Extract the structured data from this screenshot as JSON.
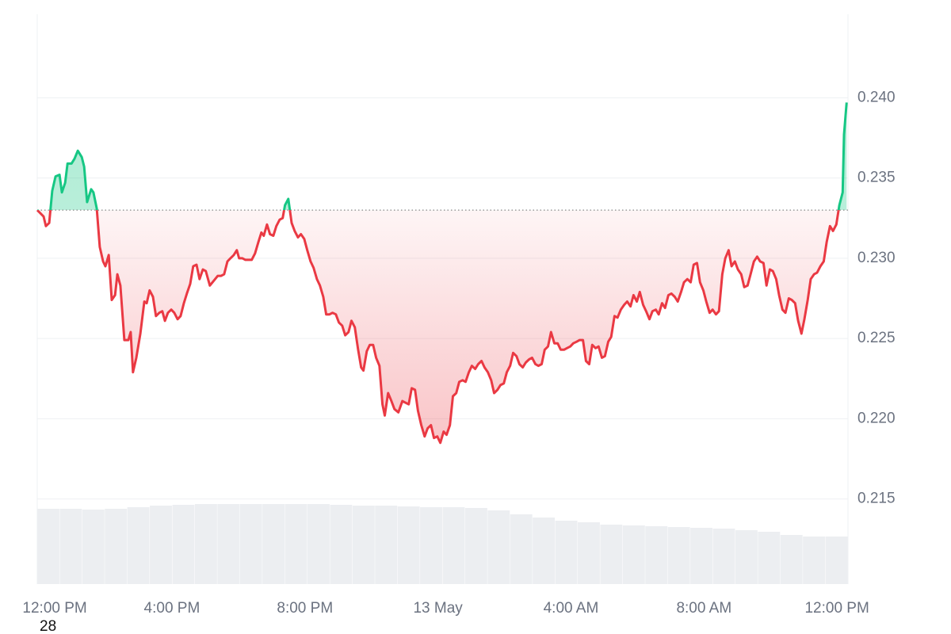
{
  "chart_data": {
    "type": "line",
    "annotation": "28",
    "x": [
      -0.05,
      0.14,
      0.21,
      0.31,
      0.4,
      0.5,
      0.62,
      0.69,
      0.79,
      0.86,
      0.98,
      1.07,
      1.17,
      1.29,
      1.36,
      1.45,
      1.57,
      1.64,
      1.74,
      1.83,
      1.93,
      2.0,
      2.1,
      2.19,
      2.29,
      2.36,
      2.45,
      2.57,
      2.69,
      2.76,
      2.83,
      2.93,
      3.05,
      3.17,
      3.24,
      3.33,
      3.43,
      3.52,
      3.62,
      3.71,
      3.79,
      3.88,
      3.98,
      4.07,
      4.17,
      4.26,
      4.36,
      4.45,
      4.55,
      4.64,
      4.74,
      4.83,
      4.93,
      5.02,
      5.14,
      5.26,
      5.38,
      5.48,
      5.57,
      5.67,
      5.76,
      5.86,
      5.95,
      6.02,
      6.12,
      6.21,
      6.31,
      6.4,
      6.5,
      6.6,
      6.69,
      6.76,
      6.86,
      6.95,
      7.05,
      7.14,
      7.24,
      7.33,
      7.4,
      7.5,
      7.6,
      7.69,
      7.79,
      7.88,
      7.98,
      8.07,
      8.17,
      8.26,
      8.36,
      8.45,
      8.55,
      8.64,
      8.74,
      8.83,
      8.93,
      9.02,
      9.12,
      9.21,
      9.31,
      9.4,
      9.5,
      9.6,
      9.69,
      9.76,
      9.86,
      9.95,
      10.05,
      10.14,
      10.24,
      10.33,
      10.4,
      10.5,
      10.6,
      10.69,
      10.81,
      10.93,
      11.02,
      11.12,
      11.21,
      11.31,
      11.4,
      11.5,
      11.6,
      11.69,
      11.79,
      11.88,
      11.98,
      12.07,
      12.17,
      12.26,
      12.36,
      12.45,
      12.55,
      12.64,
      12.74,
      12.83,
      12.93,
      13.02,
      13.12,
      13.21,
      13.31,
      13.4,
      13.5,
      13.6,
      13.69,
      13.79,
      13.88,
      13.98,
      14.07,
      14.17,
      14.26,
      14.36,
      14.45,
      14.55,
      14.64,
      14.74,
      14.83,
      14.93,
      15.02,
      15.12,
      15.21,
      15.31,
      15.4,
      15.5,
      15.6,
      15.69,
      15.79,
      15.88,
      15.98,
      16.07,
      16.17,
      16.26,
      16.36,
      16.45,
      16.55,
      16.64,
      16.74,
      16.83,
      16.93,
      17.02,
      17.12,
      17.21,
      17.31,
      17.4,
      17.5,
      17.6,
      17.69,
      17.79,
      17.88,
      17.98,
      18.07,
      18.17,
      18.26,
      18.36,
      18.45,
      18.55,
      18.64,
      18.74,
      18.83,
      18.93,
      19.02,
      19.12,
      19.21,
      19.31,
      19.4,
      19.5,
      19.6,
      19.69,
      19.79,
      19.88,
      19.98,
      20.07,
      20.17,
      20.26,
      20.36,
      20.45,
      20.55,
      20.64,
      20.74,
      20.83,
      20.93,
      21.02,
      21.12,
      21.21,
      21.31,
      21.4,
      21.5,
      21.6,
      21.69,
      21.79,
      21.88,
      21.98,
      22.07,
      22.17,
      22.26,
      22.36,
      22.45,
      22.55,
      22.64,
      22.74,
      22.83,
      22.93,
      23.02,
      23.12,
      23.21,
      23.31,
      23.4,
      23.5,
      23.6,
      23.69,
      23.79,
      23.88,
      23.98,
      24.07,
      24.17,
      24.21,
      24.29
    ],
    "series": [
      {
        "values": [
          0.233,
          0.2326,
          0.232,
          0.2322,
          0.2342,
          0.2351,
          0.2352,
          0.2341,
          0.2347,
          0.2359,
          0.2359,
          0.2362,
          0.2367,
          0.2363,
          0.2357,
          0.2335,
          0.2343,
          0.2341,
          0.2331,
          0.2307,
          0.2298,
          0.2295,
          0.2302,
          0.2274,
          0.2277,
          0.229,
          0.2283,
          0.2249,
          0.2249,
          0.2254,
          0.2229,
          0.2238,
          0.2253,
          0.2273,
          0.2272,
          0.228,
          0.2276,
          0.2264,
          0.2266,
          0.2267,
          0.2261,
          0.2266,
          0.2268,
          0.2266,
          0.2262,
          0.2264,
          0.2272,
          0.2278,
          0.2284,
          0.2295,
          0.2296,
          0.2287,
          0.2293,
          0.2292,
          0.2283,
          0.2286,
          0.2289,
          0.2289,
          0.229,
          0.2298,
          0.23,
          0.2302,
          0.2305,
          0.23,
          0.23,
          0.2299,
          0.2299,
          0.2299,
          0.2303,
          0.231,
          0.2316,
          0.2314,
          0.2321,
          0.2315,
          0.2314,
          0.232,
          0.2324,
          0.2325,
          0.2333,
          0.2337,
          0.2322,
          0.2317,
          0.2313,
          0.2315,
          0.2312,
          0.2305,
          0.2298,
          0.2294,
          0.2287,
          0.2283,
          0.2276,
          0.2265,
          0.2265,
          0.2266,
          0.2265,
          0.226,
          0.2258,
          0.2252,
          0.2254,
          0.2261,
          0.2257,
          0.2243,
          0.2232,
          0.223,
          0.2242,
          0.2246,
          0.2246,
          0.2238,
          0.2233,
          0.2209,
          0.2202,
          0.2216,
          0.2211,
          0.2206,
          0.2204,
          0.2211,
          0.221,
          0.2209,
          0.2219,
          0.2218,
          0.2205,
          0.2196,
          0.2189,
          0.2194,
          0.2196,
          0.2188,
          0.2189,
          0.2185,
          0.2192,
          0.219,
          0.2196,
          0.2214,
          0.2216,
          0.2223,
          0.2224,
          0.2223,
          0.2229,
          0.2233,
          0.2231,
          0.2234,
          0.2236,
          0.2232,
          0.2229,
          0.2224,
          0.2216,
          0.2218,
          0.2221,
          0.2222,
          0.2229,
          0.2233,
          0.2241,
          0.2239,
          0.2234,
          0.2232,
          0.2235,
          0.2237,
          0.2238,
          0.2234,
          0.2233,
          0.2234,
          0.2243,
          0.2245,
          0.2254,
          0.2247,
          0.2247,
          0.2243,
          0.2243,
          0.2244,
          0.2245,
          0.2247,
          0.2248,
          0.2249,
          0.2249,
          0.2236,
          0.2234,
          0.2246,
          0.2244,
          0.2245,
          0.2238,
          0.2239,
          0.2248,
          0.2251,
          0.2264,
          0.2263,
          0.2268,
          0.2271,
          0.2273,
          0.227,
          0.2277,
          0.2273,
          0.2279,
          0.2271,
          0.2267,
          0.2262,
          0.2267,
          0.2268,
          0.2265,
          0.2272,
          0.2269,
          0.2277,
          0.2278,
          0.2276,
          0.2273,
          0.2279,
          0.2285,
          0.2287,
          0.2285,
          0.2296,
          0.2297,
          0.2285,
          0.228,
          0.2273,
          0.2266,
          0.2268,
          0.2265,
          0.2267,
          0.229,
          0.23,
          0.2305,
          0.2295,
          0.2298,
          0.2293,
          0.229,
          0.2282,
          0.2283,
          0.229,
          0.2298,
          0.2301,
          0.2298,
          0.2297,
          0.2283,
          0.2293,
          0.2292,
          0.2287,
          0.2277,
          0.2268,
          0.2266,
          0.2275,
          0.2274,
          0.2272,
          0.2261,
          0.2253,
          0.2262,
          0.2274,
          0.2287,
          0.229,
          0.2291,
          0.2295,
          0.2298,
          0.231,
          0.232,
          0.2317,
          0.2321,
          0.2333,
          0.2341,
          0.2377,
          0.2397
        ]
      }
    ],
    "baseline": 0.233,
    "colors": {
      "up": "#16c784",
      "down": "#ea3943"
    },
    "volume": {
      "values": [
        95,
        95,
        94,
        95,
        97,
        99,
        100,
        101,
        101,
        101,
        101,
        101,
        101,
        100,
        99,
        99,
        98,
        97,
        97,
        96,
        93,
        88,
        84,
        80,
        78,
        75,
        74,
        73,
        72,
        71,
        70,
        68,
        66,
        62,
        60,
        60
      ],
      "color": "#eceef1"
    },
    "xlim": [
      -0.05,
      24.33
    ],
    "ylim": [
      0.2097,
      0.2452
    ],
    "xticks": [
      {
        "value": 0,
        "label": "12:00 PM"
      },
      {
        "value": 4,
        "label": "4:00 PM"
      },
      {
        "value": 8,
        "label": "8:00 PM"
      },
      {
        "value": 12,
        "label": "13 May"
      },
      {
        "value": 16,
        "label": "4:00 AM"
      },
      {
        "value": 20,
        "label": "8:00 AM"
      },
      {
        "value": 24,
        "label": "12:00 PM"
      }
    ],
    "yticks": [
      {
        "value": 0.215,
        "label": "0.215"
      },
      {
        "value": 0.22,
        "label": "0.220"
      },
      {
        "value": 0.225,
        "label": "0.225"
      },
      {
        "value": 0.23,
        "label": "0.230"
      },
      {
        "value": 0.235,
        "label": "0.235"
      },
      {
        "value": 0.24,
        "label": "0.240"
      }
    ],
    "grid": true
  }
}
